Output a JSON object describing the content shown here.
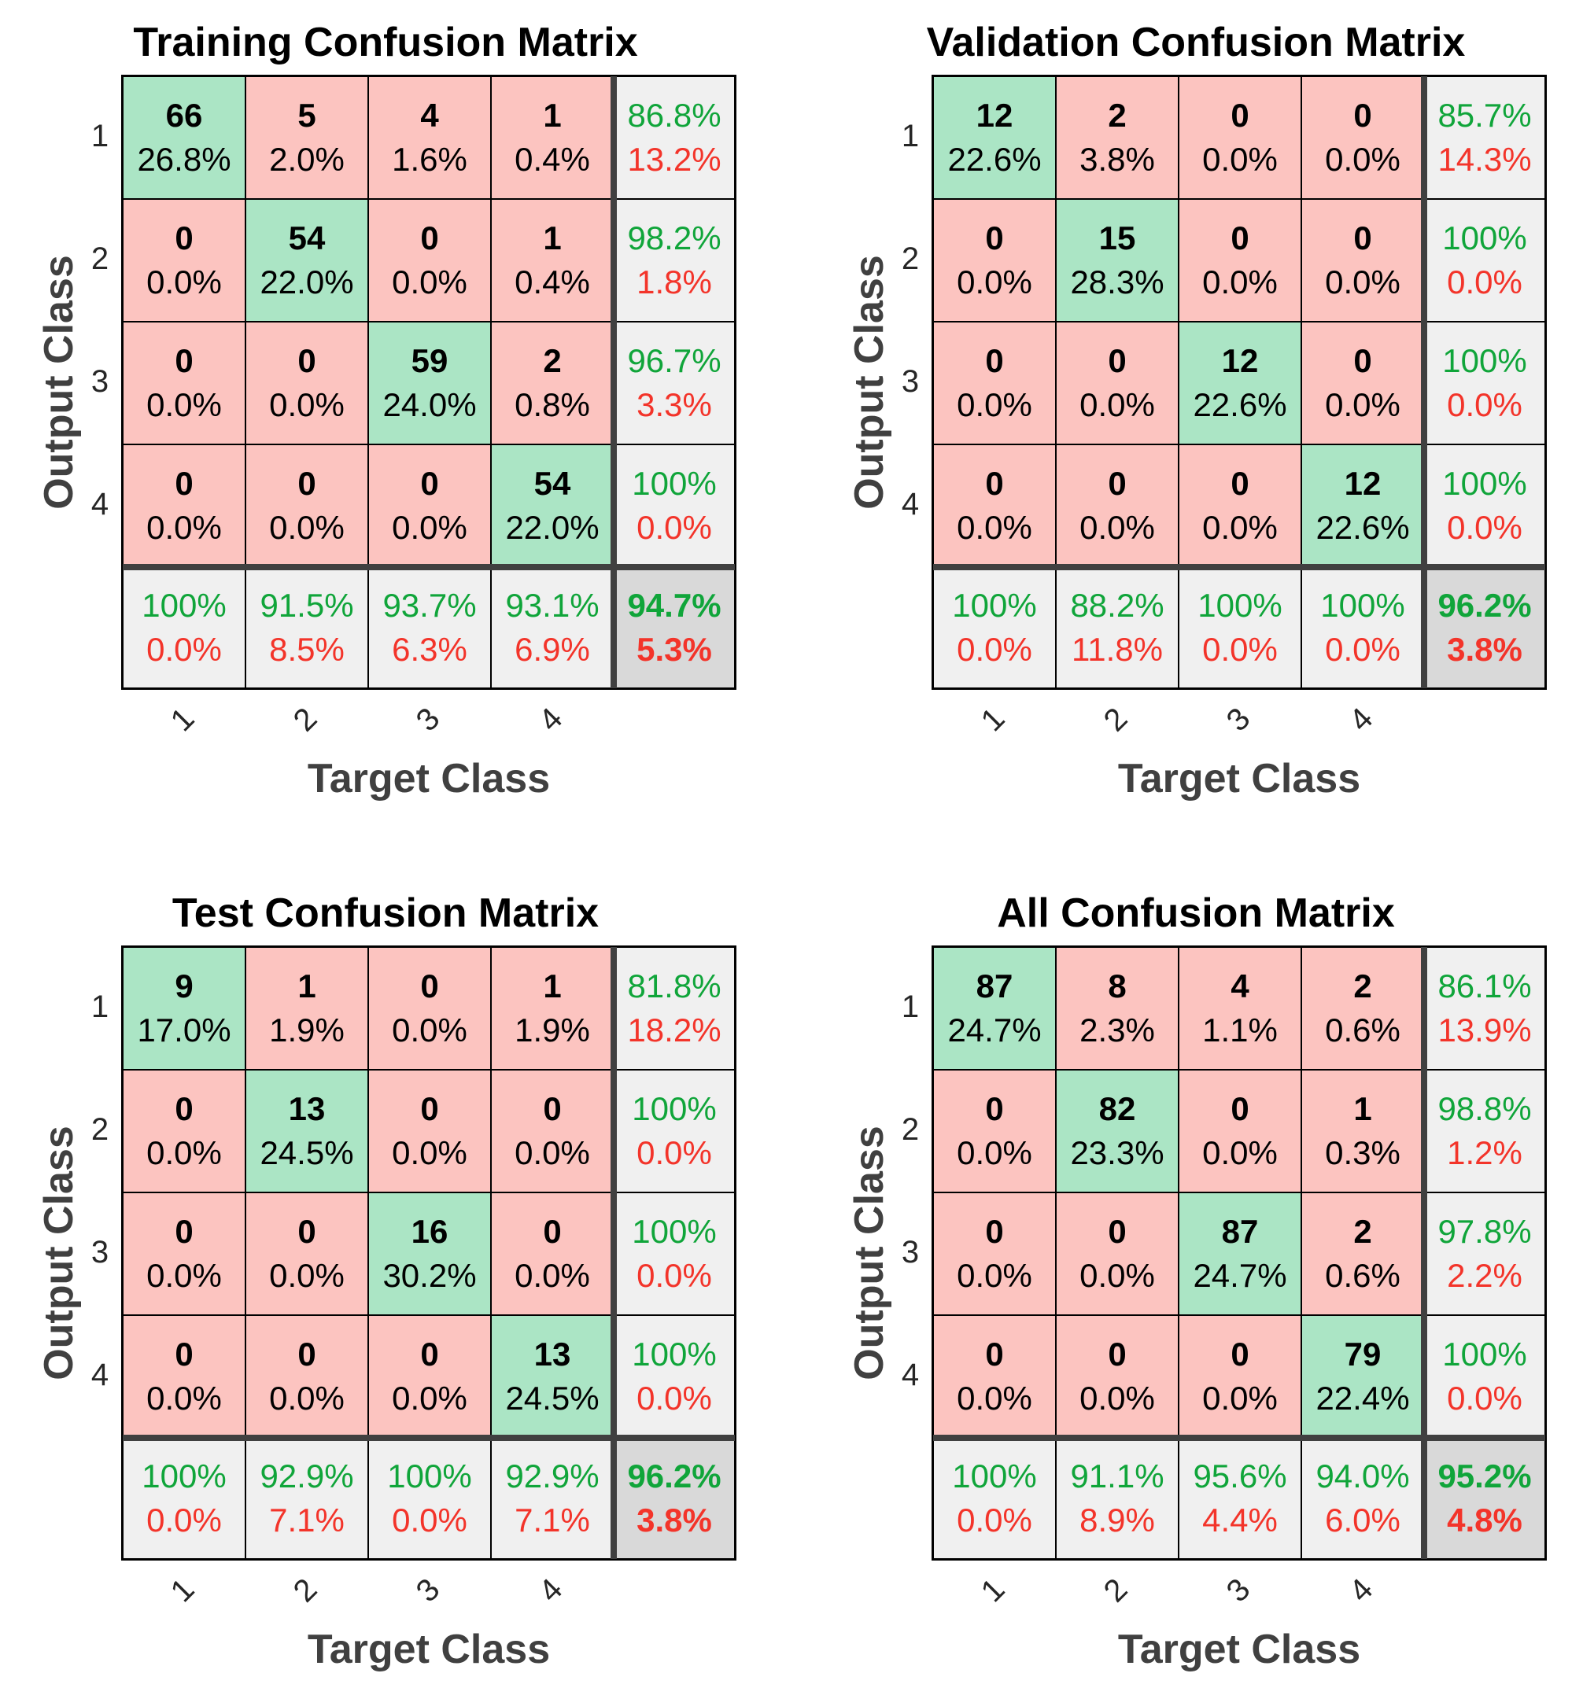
{
  "colors": {
    "correct_cell": "#abe5c5",
    "incorrect_cell": "#fcc4c0",
    "summary_cell": "#f0f0f0",
    "overall_cell": "#d9d9d9",
    "correct_text": "#10a53a",
    "incorrect_text": "#f3342a",
    "separator": "#404040"
  },
  "chart_data": [
    {
      "type": "table",
      "title": "Training Confusion Matrix",
      "xlabel": "Target Class",
      "ylabel": "Output Class",
      "classes": [
        "1",
        "2",
        "3",
        "4"
      ],
      "counts": [
        [
          66,
          5,
          4,
          1
        ],
        [
          0,
          54,
          0,
          1
        ],
        [
          0,
          0,
          59,
          2
        ],
        [
          0,
          0,
          0,
          54
        ]
      ],
      "percents": [
        [
          "26.8%",
          "2.0%",
          "1.6%",
          "0.4%"
        ],
        [
          "0.0%",
          "22.0%",
          "0.0%",
          "0.4%"
        ],
        [
          "0.0%",
          "0.0%",
          "24.0%",
          "0.8%"
        ],
        [
          "0.0%",
          "0.0%",
          "0.0%",
          "22.0%"
        ]
      ],
      "row_summary": [
        [
          "86.8%",
          "13.2%"
        ],
        [
          "98.2%",
          "1.8%"
        ],
        [
          "96.7%",
          "3.3%"
        ],
        [
          "100%",
          "0.0%"
        ]
      ],
      "col_summary": [
        [
          "100%",
          "0.0%"
        ],
        [
          "91.5%",
          "8.5%"
        ],
        [
          "93.7%",
          "6.3%"
        ],
        [
          "93.1%",
          "6.9%"
        ]
      ],
      "overall": [
        "94.7%",
        "5.3%"
      ]
    },
    {
      "type": "table",
      "title": "Validation Confusion Matrix",
      "xlabel": "Target Class",
      "ylabel": "Output Class",
      "classes": [
        "1",
        "2",
        "3",
        "4"
      ],
      "counts": [
        [
          12,
          2,
          0,
          0
        ],
        [
          0,
          15,
          0,
          0
        ],
        [
          0,
          0,
          12,
          0
        ],
        [
          0,
          0,
          0,
          12
        ]
      ],
      "percents": [
        [
          "22.6%",
          "3.8%",
          "0.0%",
          "0.0%"
        ],
        [
          "0.0%",
          "28.3%",
          "0.0%",
          "0.0%"
        ],
        [
          "0.0%",
          "0.0%",
          "22.6%",
          "0.0%"
        ],
        [
          "0.0%",
          "0.0%",
          "0.0%",
          "22.6%"
        ]
      ],
      "row_summary": [
        [
          "85.7%",
          "14.3%"
        ],
        [
          "100%",
          "0.0%"
        ],
        [
          "100%",
          "0.0%"
        ],
        [
          "100%",
          "0.0%"
        ]
      ],
      "col_summary": [
        [
          "100%",
          "0.0%"
        ],
        [
          "88.2%",
          "11.8%"
        ],
        [
          "100%",
          "0.0%"
        ],
        [
          "100%",
          "0.0%"
        ]
      ],
      "overall": [
        "96.2%",
        "3.8%"
      ]
    },
    {
      "type": "table",
      "title": "Test Confusion Matrix",
      "xlabel": "Target Class",
      "ylabel": "Output Class",
      "classes": [
        "1",
        "2",
        "3",
        "4"
      ],
      "counts": [
        [
          9,
          1,
          0,
          1
        ],
        [
          0,
          13,
          0,
          0
        ],
        [
          0,
          0,
          16,
          0
        ],
        [
          0,
          0,
          0,
          13
        ]
      ],
      "percents": [
        [
          "17.0%",
          "1.9%",
          "0.0%",
          "1.9%"
        ],
        [
          "0.0%",
          "24.5%",
          "0.0%",
          "0.0%"
        ],
        [
          "0.0%",
          "0.0%",
          "30.2%",
          "0.0%"
        ],
        [
          "0.0%",
          "0.0%",
          "0.0%",
          "24.5%"
        ]
      ],
      "row_summary": [
        [
          "81.8%",
          "18.2%"
        ],
        [
          "100%",
          "0.0%"
        ],
        [
          "100%",
          "0.0%"
        ],
        [
          "100%",
          "0.0%"
        ]
      ],
      "col_summary": [
        [
          "100%",
          "0.0%"
        ],
        [
          "92.9%",
          "7.1%"
        ],
        [
          "100%",
          "0.0%"
        ],
        [
          "92.9%",
          "7.1%"
        ]
      ],
      "overall": [
        "96.2%",
        "3.8%"
      ]
    },
    {
      "type": "table",
      "title": "All Confusion Matrix",
      "xlabel": "Target Class",
      "ylabel": "Output Class",
      "classes": [
        "1",
        "2",
        "3",
        "4"
      ],
      "counts": [
        [
          87,
          8,
          4,
          2
        ],
        [
          0,
          82,
          0,
          1
        ],
        [
          0,
          0,
          87,
          2
        ],
        [
          0,
          0,
          0,
          79
        ]
      ],
      "percents": [
        [
          "24.7%",
          "2.3%",
          "1.1%",
          "0.6%"
        ],
        [
          "0.0%",
          "23.3%",
          "0.0%",
          "0.3%"
        ],
        [
          "0.0%",
          "0.0%",
          "24.7%",
          "0.6%"
        ],
        [
          "0.0%",
          "0.0%",
          "0.0%",
          "22.4%"
        ]
      ],
      "row_summary": [
        [
          "86.1%",
          "13.9%"
        ],
        [
          "98.8%",
          "1.2%"
        ],
        [
          "97.8%",
          "2.2%"
        ],
        [
          "100%",
          "0.0%"
        ]
      ],
      "col_summary": [
        [
          "100%",
          "0.0%"
        ],
        [
          "91.1%",
          "8.9%"
        ],
        [
          "95.6%",
          "4.4%"
        ],
        [
          "94.0%",
          "6.0%"
        ]
      ],
      "overall": [
        "95.2%",
        "4.8%"
      ]
    }
  ]
}
